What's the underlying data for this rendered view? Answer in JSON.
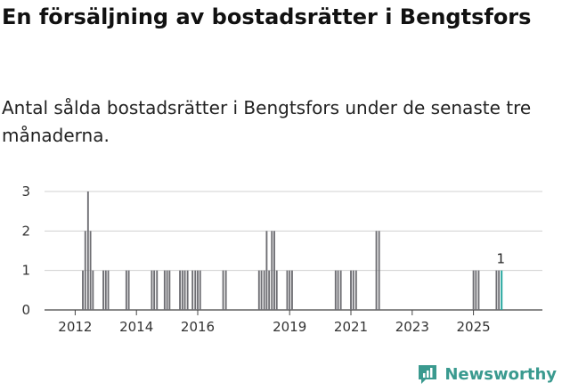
{
  "title": "En försäljning av bostadsrätter i Bengtsfors",
  "subtitle": "Antal sålda bostadsrätter i Bengtsfors under de senaste tre månaderna.",
  "brand": {
    "name": "Newsworthy",
    "icon": "newsworthy-logo-icon",
    "color": "#3a9a8f"
  },
  "chart_data": {
    "type": "bar",
    "title": "",
    "xlabel": "",
    "ylabel": "",
    "ylim": [
      0,
      3
    ],
    "yticks": [
      "0",
      "1",
      "2",
      "3"
    ],
    "xlim": [
      2011.0,
      2027.25
    ],
    "xticks": [
      {
        "value": 2012,
        "label": "2012"
      },
      {
        "value": 2014,
        "label": "2014"
      },
      {
        "value": 2016,
        "label": "2016"
      },
      {
        "value": 2019,
        "label": "2019"
      },
      {
        "value": 2021,
        "label": "2021"
      },
      {
        "value": 2023,
        "label": "2023"
      },
      {
        "value": 2025,
        "label": "2025"
      }
    ],
    "bar_width_years": 0.0833,
    "bar_color": "#6e6e73",
    "highlight_color": "#1aa39a",
    "highlight_label": "1",
    "series": [
      {
        "name": "Antal sålda",
        "x": [
          2012.25,
          2012.33,
          2012.42,
          2012.5,
          2012.58,
          2012.92,
          2013.0,
          2013.08,
          2013.67,
          2013.75,
          2014.5,
          2014.58,
          2014.67,
          2014.92,
          2015.0,
          2015.08,
          2015.42,
          2015.5,
          2015.58,
          2015.67,
          2015.83,
          2015.92,
          2016.0,
          2016.08,
          2016.83,
          2016.92,
          2018.0,
          2018.08,
          2018.17,
          2018.25,
          2018.33,
          2018.42,
          2018.5,
          2018.58,
          2018.92,
          2019.0,
          2019.08,
          2020.5,
          2020.58,
          2020.67,
          2021.0,
          2021.08,
          2021.17,
          2021.83,
          2021.92,
          2025.0,
          2025.08,
          2025.17,
          2025.75,
          2025.83,
          2025.92
        ],
        "values": [
          1,
          2,
          3,
          2,
          1,
          1,
          1,
          1,
          1,
          1,
          1,
          1,
          1,
          1,
          1,
          1,
          1,
          1,
          1,
          1,
          1,
          1,
          1,
          1,
          1,
          1,
          1,
          1,
          1,
          2,
          1,
          2,
          2,
          1,
          1,
          1,
          1,
          1,
          1,
          1,
          1,
          1,
          1,
          2,
          2,
          1,
          1,
          1,
          1,
          1,
          1
        ]
      }
    ]
  }
}
